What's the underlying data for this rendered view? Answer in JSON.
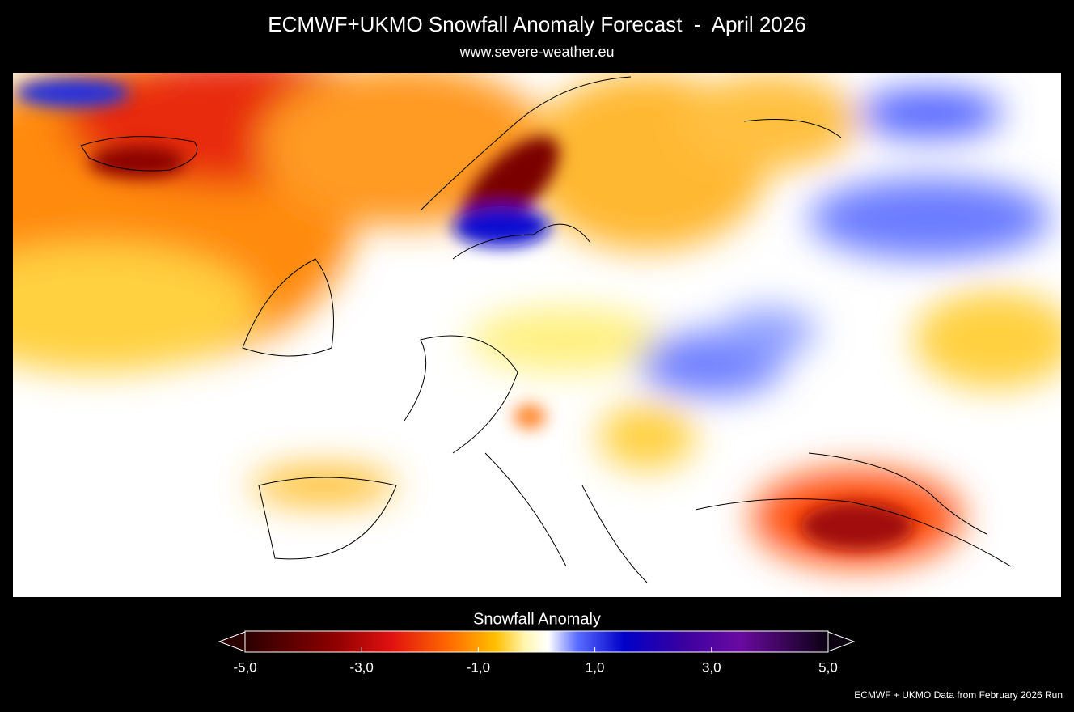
{
  "header": {
    "title": "ECMWF+UKMO Snowfall Anomaly Forecast  -  April 2026",
    "subtitle": "www.severe-weather.eu"
  },
  "colorbar": {
    "title": "Snowfall Anomaly",
    "ticks": [
      {
        "value": -5,
        "label": "-5,0"
      },
      {
        "value": -3,
        "label": "-3,0"
      },
      {
        "value": -1,
        "label": "-1,0"
      },
      {
        "value": 1,
        "label": "1,0"
      },
      {
        "value": 3,
        "label": "3,0"
      },
      {
        "value": 5,
        "label": "5,0"
      }
    ]
  },
  "footer": {
    "credit": "ECMWF + UKMO Data from February 2026 Run"
  }
}
